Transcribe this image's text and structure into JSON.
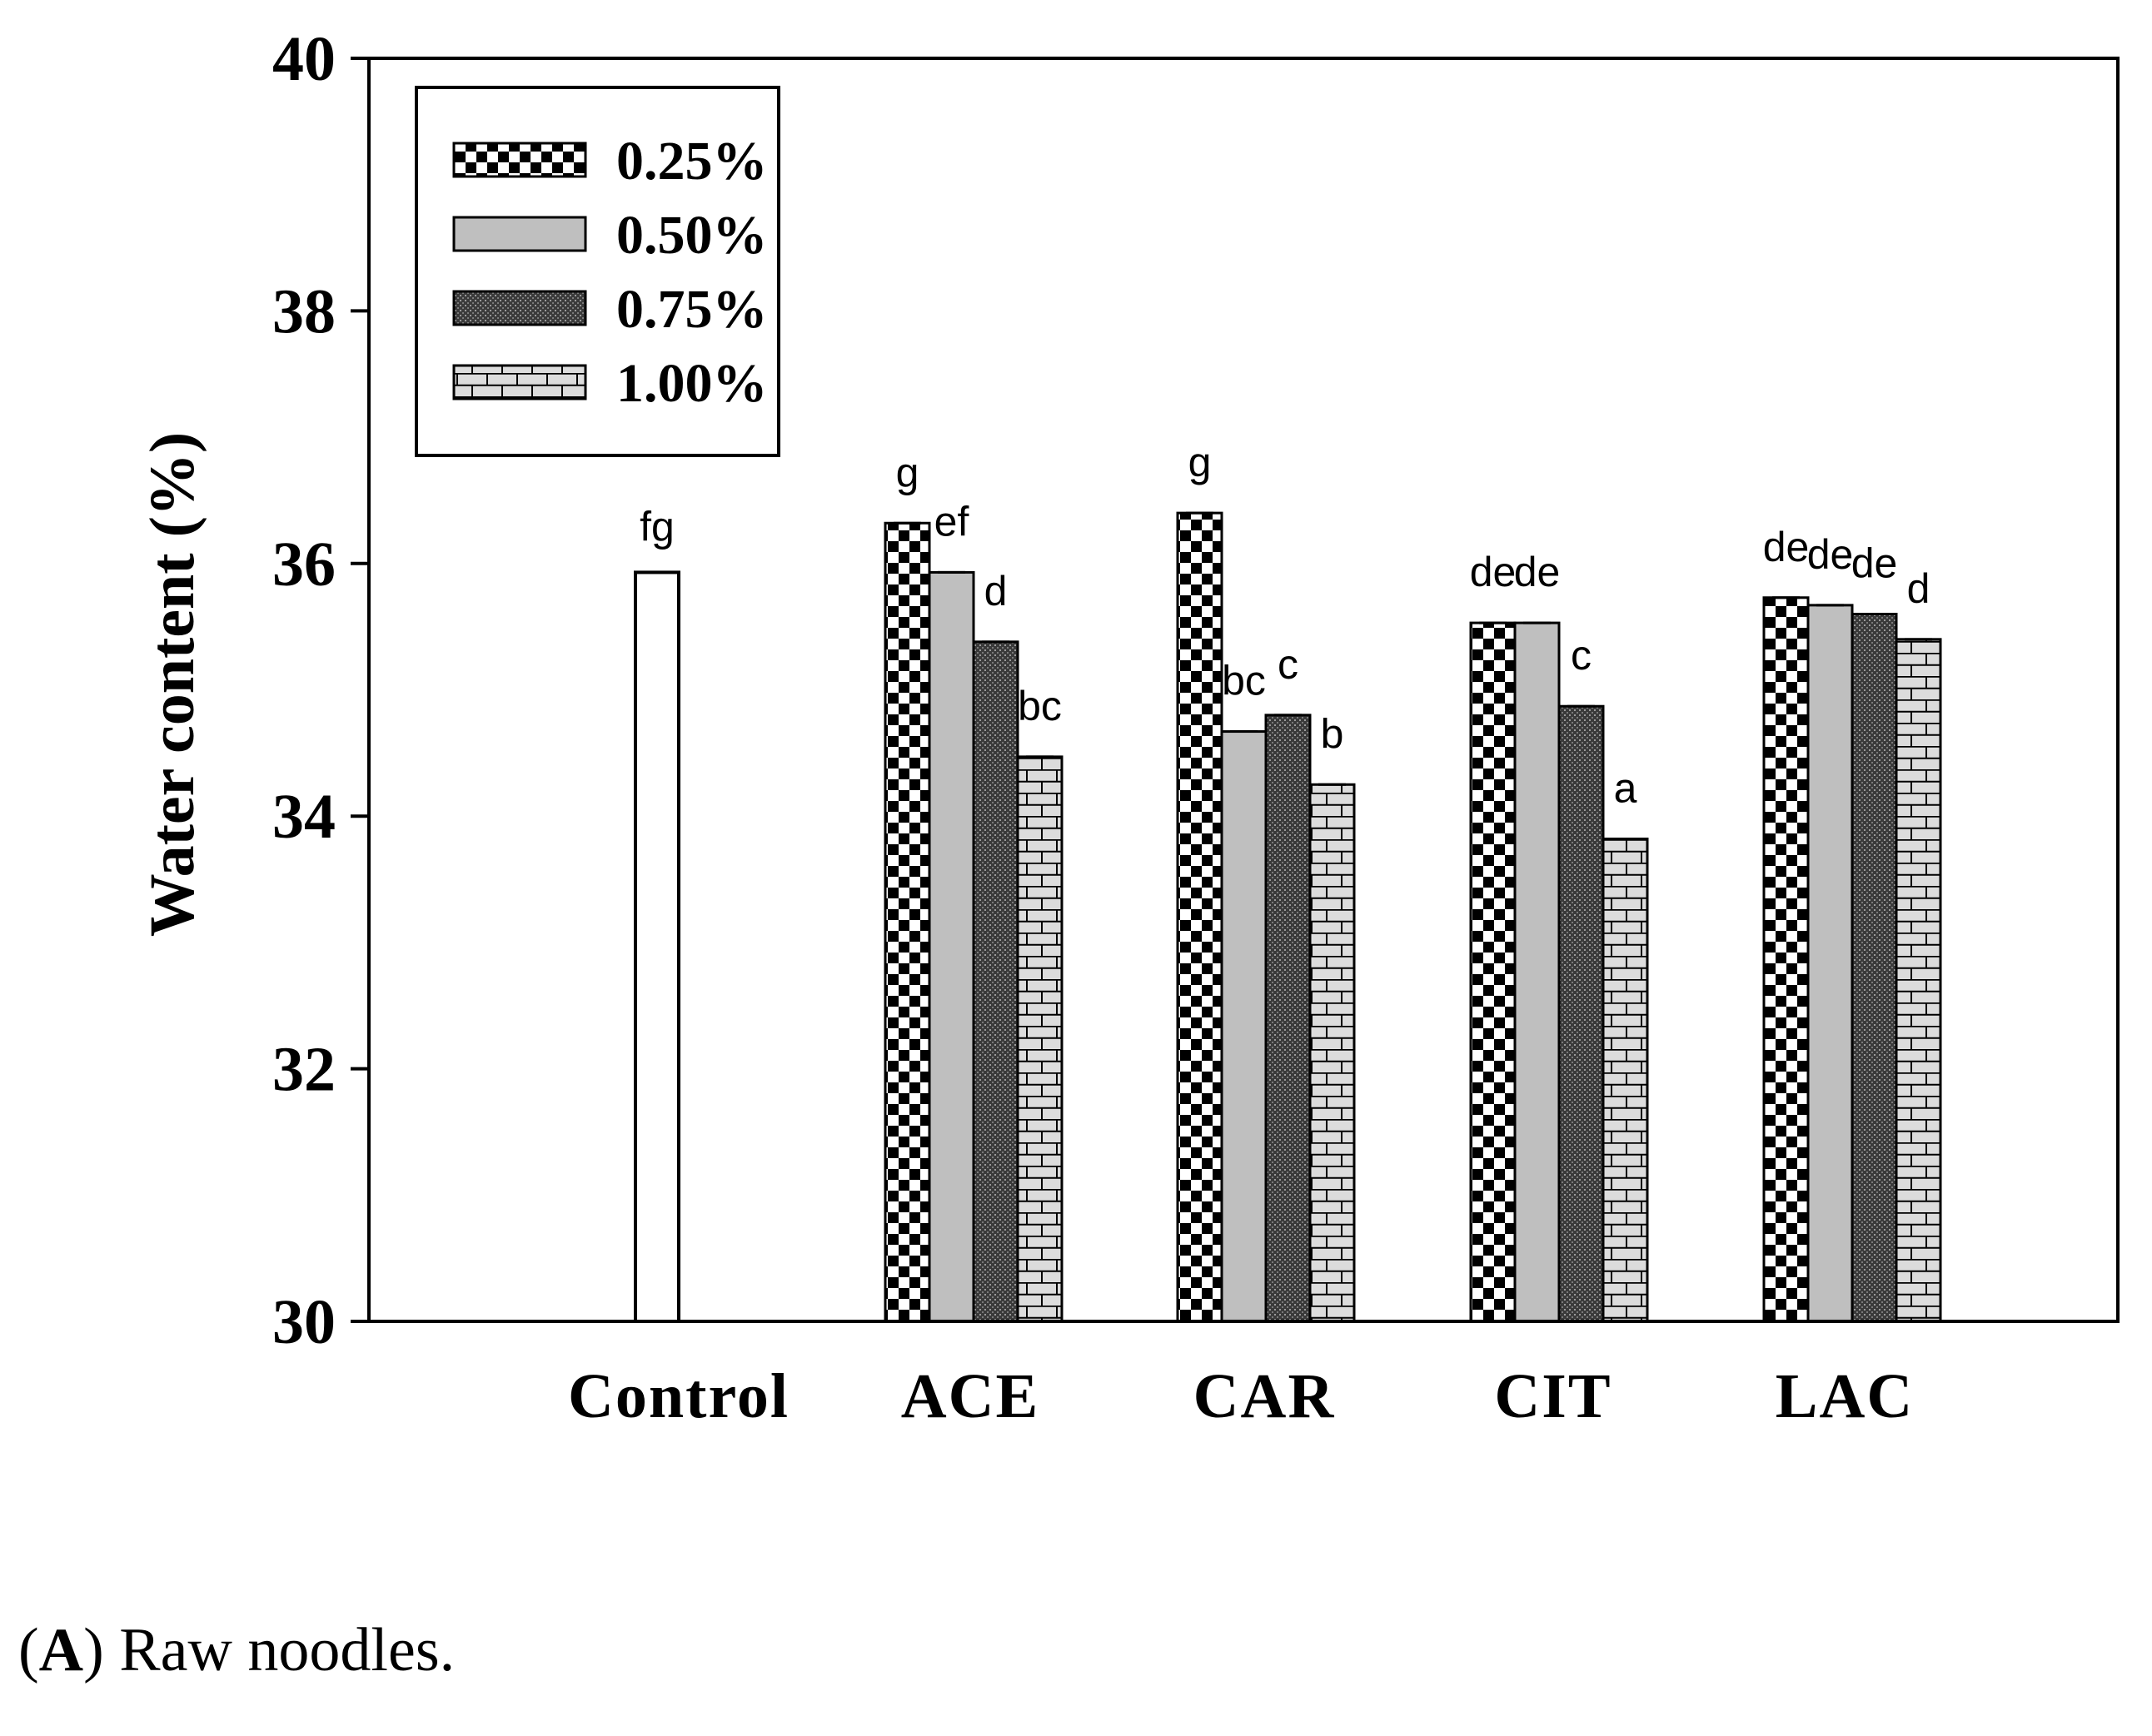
{
  "chart_data": {
    "type": "bar",
    "title": "",
    "xlabel": "",
    "ylabel": "Water content (%)",
    "ylim": [
      30,
      40
    ],
    "yticks": [
      "30",
      "32",
      "34",
      "36",
      "38",
      "40"
    ],
    "legend_position": "top-left",
    "categories": [
      "Control",
      "ACE",
      "CAR",
      "CIT",
      "LAC"
    ],
    "control": {
      "name": "Control",
      "value": 35.93,
      "letter": "fg"
    },
    "series": [
      {
        "name": "0.25%",
        "pattern": "checker",
        "values": [
          null,
          36.32,
          36.4,
          35.53,
          35.73
        ],
        "letters": [
          "",
          "g",
          "g",
          "de",
          "de"
        ]
      },
      {
        "name": "0.50%",
        "pattern": "gray",
        "values": [
          null,
          35.93,
          34.67,
          35.53,
          35.67
        ],
        "letters": [
          "",
          "ef",
          "bc",
          "de",
          "de"
        ]
      },
      {
        "name": "0.75%",
        "pattern": "dark",
        "values": [
          null,
          35.38,
          34.8,
          34.87,
          35.6
        ],
        "letters": [
          "",
          "d",
          "c",
          "c",
          "de"
        ]
      },
      {
        "name": "1.00%",
        "pattern": "brick",
        "values": [
          null,
          34.47,
          34.25,
          33.82,
          35.4
        ],
        "letters": [
          "",
          "bc",
          "b",
          "a",
          "d"
        ]
      }
    ]
  },
  "caption": {
    "label": "A",
    "text": " Raw noodles."
  }
}
